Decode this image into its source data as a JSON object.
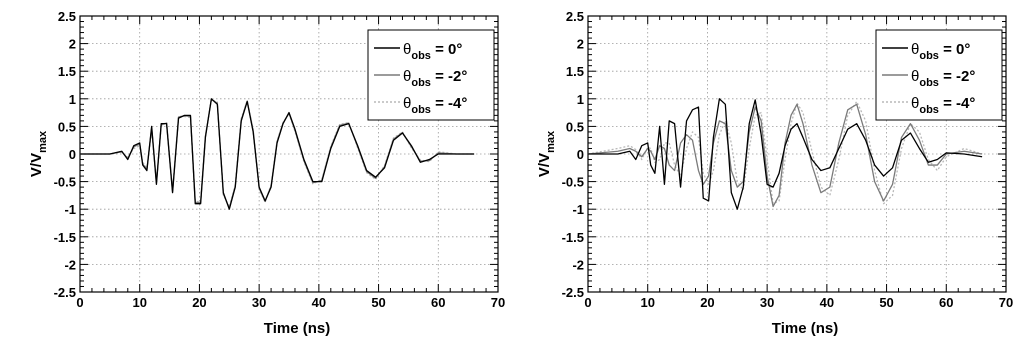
{
  "chart_data": [
    {
      "type": "line",
      "xlabel": "Time (ns)",
      "ylabel": "V/V",
      "ylabel_sub": "max",
      "xlim": [
        0,
        70
      ],
      "ylim": [
        -2.5,
        2.5
      ],
      "grid": true,
      "legend_position": "top-right",
      "x_ticks": [
        "0",
        "10",
        "20",
        "30",
        "40",
        "50",
        "60",
        "70"
      ],
      "y_ticks": [
        "2.5",
        "2",
        "1.5",
        "1",
        "0.5",
        "0",
        "-0.5",
        "-1",
        "-1.5",
        "-2",
        "-2.5"
      ],
      "series": [
        {
          "name": "θ",
          "name_sub": "obs",
          "name_value": " = 0°",
          "color": "#000000",
          "dash": "",
          "x": [
            0,
            5,
            7,
            8,
            9,
            10,
            10.5,
            11.2,
            12,
            12.8,
            13.6,
            14.5,
            15.5,
            16.5,
            17.5,
            18.5,
            19.3,
            20.2,
            21,
            22,
            23,
            24,
            25,
            26,
            27,
            28,
            29,
            30,
            31,
            32,
            33,
            34,
            35,
            36,
            37.5,
            39,
            40.5,
            42,
            43.5,
            45,
            46.5,
            48,
            49.5,
            51,
            52.5,
            54,
            55.5,
            57,
            58.5,
            60,
            63,
            66
          ],
          "y": [
            0,
            0,
            0.05,
            -0.1,
            0.15,
            0.2,
            -0.2,
            -0.3,
            0.5,
            -0.55,
            0.55,
            0.55,
            -0.7,
            0.65,
            0.7,
            0.7,
            -0.9,
            -0.9,
            0.3,
            1.0,
            0.9,
            -0.7,
            -1.0,
            -0.6,
            0.6,
            0.95,
            0.4,
            -0.6,
            -0.85,
            -0.6,
            0.2,
            0.55,
            0.75,
            0.45,
            -0.1,
            -0.5,
            -0.5,
            0.1,
            0.5,
            0.55,
            0.15,
            -0.3,
            -0.42,
            -0.25,
            0.25,
            0.38,
            0.15,
            -0.15,
            -0.1,
            0,
            0,
            0
          ]
        },
        {
          "name": "θ",
          "name_sub": "obs",
          "name_value": " = -2°",
          "color": "#7a7a7a",
          "dash": "",
          "x": [
            0,
            5,
            7,
            8,
            9,
            10,
            10.5,
            11.2,
            12,
            12.8,
            13.6,
            14.5,
            15.5,
            16.5,
            17.5,
            18.5,
            19.3,
            20.2,
            21,
            22,
            23,
            24,
            25,
            26,
            27,
            28,
            29,
            30,
            31,
            32,
            33,
            34,
            35,
            36,
            37.5,
            39,
            40.5,
            42,
            43.5,
            45,
            46.5,
            48,
            49.5,
            51,
            52.5,
            54,
            55.5,
            57,
            58.5,
            60,
            63,
            66
          ],
          "y": [
            0,
            0,
            0.04,
            -0.08,
            0.13,
            0.18,
            -0.18,
            -0.28,
            0.47,
            -0.52,
            0.53,
            0.56,
            -0.68,
            0.67,
            0.69,
            0.68,
            -0.88,
            -0.88,
            0.32,
            0.99,
            0.92,
            -0.72,
            -0.98,
            -0.58,
            0.62,
            0.96,
            0.42,
            -0.62,
            -0.86,
            -0.58,
            0.22,
            0.56,
            0.74,
            0.43,
            -0.12,
            -0.52,
            -0.48,
            0.12,
            0.52,
            0.56,
            0.13,
            -0.32,
            -0.44,
            -0.23,
            0.27,
            0.39,
            0.13,
            -0.13,
            -0.12,
            0.02,
            0,
            0
          ]
        },
        {
          "name": "θ",
          "name_sub": "obs",
          "name_value": " = -4°",
          "color": "#b8b8b8",
          "dash": "2,2",
          "x": [
            0,
            5,
            7,
            8,
            9,
            10,
            10.5,
            11.2,
            12,
            12.8,
            13.6,
            14.5,
            15.5,
            16.5,
            17.5,
            18.5,
            19.3,
            20.2,
            21,
            22,
            23,
            24,
            25,
            26,
            27,
            28,
            29,
            30,
            31,
            32,
            33,
            34,
            35,
            36,
            37.5,
            39,
            40.5,
            42,
            43.5,
            45,
            46.5,
            48,
            49.5,
            51,
            52.5,
            54,
            55.5,
            57,
            58.5,
            60,
            63,
            66
          ],
          "y": [
            0,
            0,
            0.03,
            -0.06,
            0.1,
            0.15,
            -0.15,
            -0.25,
            0.44,
            -0.5,
            0.5,
            0.58,
            -0.66,
            0.68,
            0.68,
            0.66,
            -0.86,
            -0.86,
            0.34,
            0.98,
            0.94,
            -0.74,
            -0.96,
            -0.56,
            0.64,
            0.97,
            0.44,
            -0.64,
            -0.87,
            -0.56,
            0.24,
            0.57,
            0.73,
            0.41,
            -0.14,
            -0.54,
            -0.46,
            0.14,
            0.54,
            0.57,
            0.11,
            -0.34,
            -0.46,
            -0.21,
            0.29,
            0.4,
            0.11,
            -0.11,
            -0.14,
            0.04,
            0,
            0
          ]
        }
      ]
    },
    {
      "type": "line",
      "xlabel": "Time (ns)",
      "ylabel": "V/V",
      "ylabel_sub": "max",
      "xlim": [
        0,
        70
      ],
      "ylim": [
        -2.5,
        2.5
      ],
      "grid": true,
      "legend_position": "top-right",
      "x_ticks": [
        "0",
        "10",
        "20",
        "30",
        "40",
        "50",
        "60",
        "70"
      ],
      "y_ticks": [
        "2.5",
        "2",
        "1.5",
        "1",
        "0.5",
        "0",
        "-0.5",
        "-1",
        "-1.5",
        "-2",
        "-2.5"
      ],
      "series": [
        {
          "name": "θ",
          "name_sub": "obs",
          "name_value": " = 0°",
          "color": "#000000",
          "dash": "",
          "x": [
            0,
            5,
            7,
            8,
            9,
            10,
            10.5,
            11.2,
            12,
            12.8,
            13.6,
            14.5,
            15.5,
            16.5,
            17.5,
            18.5,
            19.3,
            20.2,
            21,
            22,
            23,
            24,
            25,
            26,
            27,
            28,
            29,
            30,
            31,
            32,
            33,
            34,
            35,
            36,
            37.5,
            39,
            40.5,
            42,
            43.5,
            45,
            46.5,
            48,
            49.5,
            51,
            52.5,
            54,
            55.5,
            57,
            58.5,
            60,
            63,
            66
          ],
          "y": [
            0,
            0,
            0.05,
            -0.1,
            0.15,
            0.2,
            -0.2,
            -0.35,
            0.5,
            -0.55,
            0.6,
            0.55,
            -0.6,
            0.6,
            0.8,
            0.85,
            -0.8,
            -0.85,
            0.3,
            1.0,
            0.9,
            -0.7,
            -1.0,
            -0.6,
            0.55,
            0.98,
            0.35,
            -0.55,
            -0.6,
            -0.35,
            0.15,
            0.45,
            0.55,
            0.3,
            -0.1,
            -0.3,
            -0.25,
            0.1,
            0.45,
            0.55,
            0.25,
            -0.2,
            -0.4,
            -0.25,
            0.25,
            0.38,
            0.1,
            -0.15,
            -0.1,
            0.02,
            0,
            -0.05
          ]
        },
        {
          "name": "θ",
          "name_sub": "obs",
          "name_value": " = -2°",
          "color": "#7a7a7a",
          "dash": "",
          "x": [
            0,
            5,
            7,
            8,
            9,
            10,
            10.5,
            11.2,
            12,
            12.8,
            13.6,
            14.5,
            15.5,
            16.5,
            17.5,
            18.5,
            19.3,
            20.2,
            21,
            22,
            23,
            24,
            25,
            26,
            27,
            28,
            29,
            30,
            31,
            32,
            33,
            34,
            35,
            36,
            37.5,
            39,
            40.5,
            42,
            43.5,
            45,
            46.5,
            48,
            49.5,
            51,
            52.5,
            54,
            55.5,
            57,
            58.5,
            60,
            63,
            66
          ],
          "y": [
            0,
            0.05,
            0.1,
            0.05,
            -0.05,
            0.1,
            0.05,
            -0.1,
            0.15,
            0.1,
            -0.2,
            -0.3,
            0.2,
            0.35,
            0.25,
            -0.3,
            -0.55,
            -0.4,
            0.2,
            0.6,
            0.55,
            -0.3,
            -0.6,
            -0.5,
            0.4,
            0.85,
            0.6,
            -0.4,
            -0.95,
            -0.75,
            0.2,
            0.7,
            0.9,
            0.55,
            -0.2,
            -0.7,
            -0.6,
            0.2,
            0.8,
            0.9,
            0.35,
            -0.5,
            -0.85,
            -0.55,
            0.3,
            0.55,
            0.25,
            -0.2,
            -0.2,
            0,
            0.05,
            0
          ]
        },
        {
          "name": "θ",
          "name_sub": "obs",
          "name_value": " = -4°",
          "color": "#b8b8b8",
          "dash": "2,2",
          "x": [
            0,
            5,
            7,
            8,
            9,
            10,
            10.5,
            11.2,
            12,
            12.8,
            13.6,
            14.5,
            15.5,
            16.5,
            17.5,
            18.5,
            19.3,
            20.2,
            21,
            22,
            23,
            24,
            25,
            26,
            27,
            28,
            29,
            30,
            31,
            32,
            33,
            34,
            35,
            36,
            37.5,
            39,
            40.5,
            42,
            43.5,
            45,
            46.5,
            48,
            49.5,
            51,
            52.5,
            54,
            55.5,
            57,
            58.5,
            60,
            63,
            66
          ],
          "y": [
            0,
            0.1,
            0.15,
            0.08,
            -0.1,
            0.12,
            0.1,
            -0.15,
            -0.1,
            0.2,
            0.2,
            -0.2,
            -0.4,
            0.1,
            0.4,
            0.3,
            -0.35,
            -0.55,
            -0.3,
            0.35,
            0.6,
            0.2,
            -0.5,
            -0.65,
            0.1,
            0.7,
            0.75,
            -0.1,
            -0.9,
            -0.85,
            -0.1,
            0.55,
            0.92,
            0.75,
            0.05,
            -0.6,
            -0.75,
            -0.1,
            0.7,
            0.95,
            0.6,
            -0.3,
            -0.9,
            -0.75,
            0.1,
            0.55,
            0.4,
            -0.1,
            -0.3,
            -0.05,
            0.1,
            0
          ]
        }
      ]
    }
  ]
}
